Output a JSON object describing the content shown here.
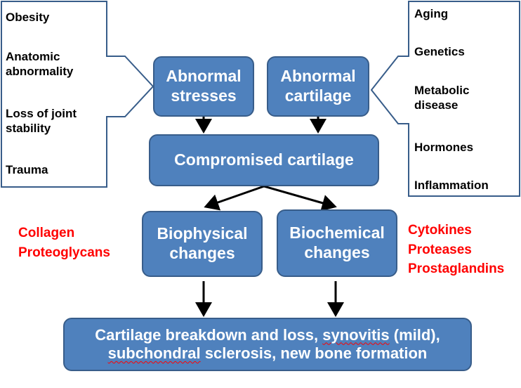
{
  "left_factors": {
    "items": [
      {
        "line1": "Obesity",
        "line2": ""
      },
      {
        "line1": "Anatomic",
        "line2": "abnormality"
      },
      {
        "line1": "Loss of joint",
        "line2": "stability"
      },
      {
        "line1": "Trauma",
        "line2": ""
      }
    ]
  },
  "right_factors": {
    "items": [
      {
        "line1": "Aging",
        "line2": ""
      },
      {
        "line1": "Genetics",
        "line2": ""
      },
      {
        "line1": "Metabolic",
        "line2": "disease"
      },
      {
        "line1": "Hormones",
        "line2": ""
      },
      {
        "line1": "Inflammation",
        "line2": ""
      }
    ]
  },
  "nodes": {
    "abnormal_stresses": {
      "line1": "Abnormal",
      "line2": "stresses"
    },
    "abnormal_cartilage": {
      "line1": "Abnormal",
      "line2": "cartilage"
    },
    "compromised_cartilage": {
      "label": "Compromised cartilage"
    },
    "biophysical_changes": {
      "line1": "Biophysical",
      "line2": "changes"
    },
    "biochemical_changes": {
      "line1": "Biochemical",
      "line2": "changes"
    },
    "outcome": {
      "line1_a": "Cartilage breakdown and loss, ",
      "line1_b": "synovitis",
      "line1_c": " (mild),",
      "line2_a": "subchondral",
      "line2_b": " sclerosis, new bone formation"
    }
  },
  "left_annotation": {
    "items": [
      "Collagen",
      "Proteoglycans"
    ]
  },
  "right_annotation": {
    "items": [
      "Cytokines",
      "Proteases",
      "Prostaglandins"
    ]
  },
  "colors": {
    "node_fill": "#4f81bd",
    "node_border": "#385d8a",
    "annotation_red": "#ff0000",
    "callout_border": "#385d8a"
  }
}
